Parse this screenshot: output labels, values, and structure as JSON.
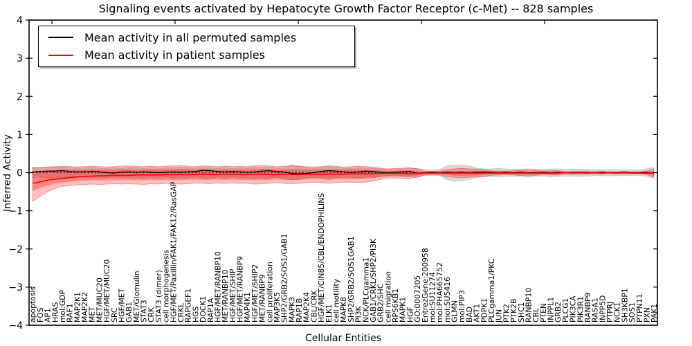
{
  "title": "Signaling events activated by Hepatocyte Growth Factor Receptor (c-Met) -- 828 samples",
  "legend": {
    "items": [
      {
        "label": "Mean activity in all permuted samples",
        "color": "#000000"
      },
      {
        "label": "Mean activity in patient samples",
        "color": "#ff0000"
      }
    ]
  },
  "axes": {
    "x_label": "Cellular Entities",
    "y_label": "Inferred Activity",
    "y_ticks": [
      4,
      3,
      2,
      1,
      0,
      -1,
      -2,
      -3,
      -4
    ]
  },
  "colors": {
    "permuted_line": "#000000",
    "patient_line": "#ff0000",
    "permuted_band": "rgba(125,125,125,0.30)",
    "patient_band_outer": "rgba(255,0,0,0.25)",
    "patient_band_inner": "rgba(255,0,0,0.30)",
    "zero_line": "#000000"
  },
  "chart_data": {
    "type": "line",
    "title": "Signaling events activated by Hepatocyte Growth Factor Receptor (c-Met) -- 828 samples",
    "xlabel": "Cellular Entities",
    "ylabel": "Inferred Activity",
    "ylim": [
      -4,
      4
    ],
    "grid": false,
    "legend_position": "upper left",
    "zero_reference_line": 0,
    "categories": [
      "apoptosis",
      "FOS",
      "AP1",
      "HRAS",
      "mol:GDP",
      "RAF1",
      "MAP2K1",
      "MAP2K2",
      "MET",
      "MET/MUC20",
      "HGF/MET/MUC20",
      "SRC",
      "HGF/MET",
      "GAB1",
      "MET/Glomulin",
      "STAT3",
      "CRK",
      "STAT3 (dimer)",
      "cell morphogenesis",
      "HGF/MET/Paxillin/FAK1/FAK12/RasGAP",
      "CRKL",
      "RAPGEF1",
      "HGS",
      "DOCK1",
      "RAP1A",
      "HGF/MET/RANBP10",
      "MET/RANBP10",
      "HGF/MET/SHIP",
      "HGF/MET/RANBP9",
      "MAP4K1",
      "HGF/MET/SHIP2",
      "MET/RANBP9",
      "cell proliferation",
      "MAP3K5",
      "SHP2/GRB2/SOS1/GAB1",
      "MAPK3",
      "RAP1B",
      "MAP2K4",
      "CBL/CRK",
      "HGF/MET/CIN85/CBL/ENDOPHILINS",
      "ELK1",
      "cell motility",
      "MAPK8",
      "SHP2/GRB2/SOS1GAB1",
      "PI3K",
      "NCK/PLCgamma1",
      "GAB1/CRKL/SHP2/PI3K",
      "GRB2/SHC",
      "cell migration",
      "RPS6KB1",
      "MAPK1",
      "HGF",
      "GO:0007205",
      "EntrezGene:200958",
      "mol:SU11274",
      "mol:PHA665752",
      "mol:SU5416",
      "GLMN",
      "mol:PIP3",
      "BAD",
      "AKT1",
      "PDPK1",
      "PLCgamma1/PKC",
      "JUN",
      "PTK2",
      "PTK2B",
      "SHC1",
      "RANBP10",
      "CBL",
      "PTEN",
      "INPPL1",
      "GRB2",
      "PLCG1",
      "PIK3CA",
      "PIK3R1",
      "RANBP9",
      "RASA1",
      "INPP5D",
      "PTPRJ",
      "NCK1",
      "SH3KBP1",
      "SOS1",
      "PTPN11",
      "PXN",
      "PAK1"
    ],
    "series": [
      {
        "name": "Mean activity in all permuted samples",
        "color": "#000000",
        "values": [
          0.02,
          0.03,
          0.04,
          0.04,
          0.05,
          0.03,
          0.02,
          0.02,
          0.03,
          0.02,
          0.0,
          -0.01,
          0.01,
          0.02,
          0.01,
          0.02,
          0.01,
          0.0,
          0.01,
          0.02,
          0.01,
          0.02,
          0.03,
          0.06,
          0.05,
          0.03,
          0.02,
          0.03,
          0.02,
          0.01,
          0.02,
          0.04,
          0.05,
          0.03,
          0.02,
          -0.02,
          -0.03,
          -0.02,
          0.0,
          0.03,
          0.05,
          0.04,
          0.02,
          0.01,
          0.02,
          0.04,
          0.03,
          0.01,
          0.0,
          0.01,
          0.02,
          0.03,
          -0.02,
          0.0,
          0.01,
          0.0,
          0.01,
          0.0,
          0.01,
          0.0,
          0.01,
          0.02,
          0.01,
          0.0,
          0.01,
          0.0,
          0.01,
          0.0,
          0.0,
          0.01,
          0.0,
          0.01,
          0.0,
          0.0,
          0.01,
          0.0,
          0.0,
          0.01,
          0.0,
          0.0,
          0.01,
          0.0,
          0.0,
          0.01,
          -0.02
        ],
        "band_upper": [
          0.15,
          0.14,
          0.13,
          0.14,
          0.15,
          0.13,
          0.12,
          0.13,
          0.14,
          0.12,
          0.12,
          0.13,
          0.12,
          0.14,
          0.13,
          0.12,
          0.13,
          0.12,
          0.13,
          0.14,
          0.15,
          0.13,
          0.12,
          0.14,
          0.13,
          0.12,
          0.13,
          0.12,
          0.13,
          0.12,
          0.14,
          0.15,
          0.14,
          0.12,
          0.13,
          0.2,
          0.18,
          0.13,
          0.12,
          0.13,
          0.16,
          0.14,
          0.12,
          0.12,
          0.13,
          0.13,
          0.12,
          0.1,
          0.09,
          0.09,
          0.1,
          0.11,
          0.12,
          0.08,
          0.07,
          0.08,
          0.18,
          0.2,
          0.2,
          0.18,
          0.12,
          0.1,
          0.1,
          0.11,
          0.1,
          0.09,
          0.09,
          0.1,
          0.09,
          0.09,
          0.1,
          0.1,
          0.09,
          0.09,
          0.09,
          0.09,
          0.08,
          0.08,
          0.08,
          0.08,
          0.08,
          0.08,
          0.07,
          0.1,
          0.14
        ],
        "band_lower": [
          -0.15,
          -0.14,
          -0.14,
          -0.13,
          -0.14,
          -0.13,
          -0.12,
          -0.13,
          -0.12,
          -0.13,
          -0.13,
          -0.12,
          -0.13,
          -0.12,
          -0.13,
          -0.14,
          -0.12,
          -0.13,
          -0.12,
          -0.13,
          -0.14,
          -0.13,
          -0.12,
          -0.13,
          -0.14,
          -0.12,
          -0.13,
          -0.12,
          -0.13,
          -0.13,
          -0.15,
          -0.14,
          -0.13,
          -0.12,
          -0.14,
          -0.19,
          -0.17,
          -0.13,
          -0.12,
          -0.13,
          -0.15,
          -0.13,
          -0.12,
          -0.12,
          -0.13,
          -0.12,
          -0.12,
          -0.1,
          -0.09,
          -0.09,
          -0.1,
          -0.11,
          -0.12,
          -0.08,
          -0.07,
          -0.08,
          -0.18,
          -0.22,
          -0.22,
          -0.18,
          -0.13,
          -0.11,
          -0.1,
          -0.11,
          -0.1,
          -0.1,
          -0.09,
          -0.1,
          -0.09,
          -0.09,
          -0.11,
          -0.1,
          -0.09,
          -0.09,
          -0.1,
          -0.09,
          -0.08,
          -0.08,
          -0.09,
          -0.08,
          -0.08,
          -0.08,
          -0.07,
          -0.1,
          -0.14
        ]
      },
      {
        "name": "Mean activity in patient samples",
        "color": "#ff0000",
        "values": [
          -0.28,
          -0.24,
          -0.2,
          -0.17,
          -0.15,
          -0.13,
          -0.11,
          -0.1,
          -0.09,
          -0.08,
          -0.08,
          -0.07,
          -0.07,
          -0.07,
          -0.06,
          -0.06,
          -0.06,
          -0.06,
          -0.05,
          -0.05,
          -0.05,
          -0.05,
          -0.05,
          -0.04,
          -0.05,
          -0.05,
          -0.04,
          -0.04,
          -0.05,
          -0.05,
          -0.04,
          -0.04,
          -0.05,
          -0.05,
          -0.04,
          -0.05,
          -0.05,
          -0.04,
          -0.04,
          -0.05,
          -0.04,
          -0.04,
          -0.04,
          -0.03,
          -0.03,
          -0.03,
          -0.03,
          -0.02,
          -0.02,
          -0.02,
          -0.02,
          -0.03,
          -0.02,
          -0.01,
          -0.01,
          -0.01,
          -0.01,
          -0.01,
          -0.01,
          -0.01,
          -0.01,
          -0.01,
          -0.01,
          -0.01,
          -0.01,
          -0.01,
          -0.01,
          -0.01,
          -0.01,
          -0.01,
          -0.01,
          -0.01,
          0.0,
          -0.01,
          0.0,
          -0.01,
          0.0,
          -0.01,
          0.0,
          -0.01,
          0.0,
          -0.01,
          -0.01,
          -0.01,
          -0.01
        ],
        "band_upper": [
          0.12,
          0.13,
          0.15,
          0.16,
          0.17,
          0.16,
          0.15,
          0.16,
          0.17,
          0.16,
          0.15,
          0.16,
          0.17,
          0.18,
          0.17,
          0.16,
          0.17,
          0.16,
          0.17,
          0.18,
          0.19,
          0.17,
          0.16,
          0.18,
          0.17,
          0.16,
          0.17,
          0.16,
          0.17,
          0.16,
          0.18,
          0.19,
          0.18,
          0.16,
          0.17,
          0.18,
          0.17,
          0.16,
          0.15,
          0.16,
          0.18,
          0.17,
          0.15,
          0.16,
          0.17,
          0.16,
          0.14,
          0.12,
          0.1,
          0.11,
          0.12,
          0.13,
          0.1,
          0.04,
          0.03,
          0.04,
          0.08,
          0.1,
          0.11,
          0.1,
          0.09,
          0.08,
          0.05,
          0.04,
          0.04,
          0.05,
          0.06,
          0.07,
          0.06,
          0.04,
          0.05,
          0.05,
          0.03,
          0.03,
          0.03,
          0.03,
          0.02,
          0.03,
          0.02,
          0.02,
          0.03,
          0.02,
          0.02,
          0.04,
          0.1
        ],
        "band_lower": [
          -0.75,
          -0.62,
          -0.5,
          -0.42,
          -0.36,
          -0.34,
          -0.32,
          -0.31,
          -0.3,
          -0.31,
          -0.3,
          -0.29,
          -0.3,
          -0.29,
          -0.3,
          -0.31,
          -0.29,
          -0.3,
          -0.28,
          -0.29,
          -0.3,
          -0.29,
          -0.27,
          -0.28,
          -0.29,
          -0.27,
          -0.28,
          -0.27,
          -0.28,
          -0.28,
          -0.3,
          -0.29,
          -0.28,
          -0.26,
          -0.28,
          -0.29,
          -0.28,
          -0.26,
          -0.25,
          -0.26,
          -0.28,
          -0.26,
          -0.25,
          -0.25,
          -0.26,
          -0.25,
          -0.22,
          -0.18,
          -0.14,
          -0.14,
          -0.15,
          -0.16,
          -0.12,
          -0.06,
          -0.05,
          -0.06,
          -0.1,
          -0.12,
          -0.13,
          -0.12,
          -0.11,
          -0.1,
          -0.07,
          -0.06,
          -0.05,
          -0.06,
          -0.08,
          -0.09,
          -0.07,
          -0.05,
          -0.06,
          -0.06,
          -0.04,
          -0.04,
          -0.04,
          -0.04,
          -0.03,
          -0.04,
          -0.03,
          -0.03,
          -0.04,
          -0.03,
          -0.03,
          -0.05,
          -0.12
        ],
        "inner_band_upper": [
          0.02,
          0.04,
          0.06,
          0.07,
          0.08,
          0.08,
          0.08,
          0.08,
          0.09,
          0.08,
          0.08,
          0.08,
          0.09,
          0.09,
          0.08,
          0.08,
          0.09,
          0.08,
          0.09,
          0.09,
          0.1,
          0.09,
          0.08,
          0.09,
          0.09,
          0.08,
          0.09,
          0.08,
          0.09,
          0.08,
          0.09,
          0.1,
          0.09,
          0.08,
          0.09,
          0.09,
          0.09,
          0.08,
          0.08,
          0.08,
          0.09,
          0.09,
          0.08,
          0.08,
          0.09,
          0.08,
          0.07,
          0.06,
          0.05,
          0.05,
          0.06,
          0.06,
          0.05,
          0.02,
          0.01,
          0.02,
          0.04,
          0.05,
          0.05,
          0.05,
          0.04,
          0.04,
          0.02,
          0.02,
          0.02,
          0.02,
          0.03,
          0.03,
          0.03,
          0.02,
          0.02,
          0.02,
          0.01,
          0.01,
          0.01,
          0.01,
          0.01,
          0.01,
          0.01,
          0.01,
          0.01,
          0.01,
          0.01,
          0.02,
          0.05
        ],
        "inner_band_lower": [
          -0.48,
          -0.4,
          -0.34,
          -0.29,
          -0.26,
          -0.24,
          -0.22,
          -0.21,
          -0.2,
          -0.2,
          -0.2,
          -0.19,
          -0.2,
          -0.19,
          -0.2,
          -0.2,
          -0.19,
          -0.2,
          -0.19,
          -0.19,
          -0.2,
          -0.19,
          -0.18,
          -0.19,
          -0.19,
          -0.18,
          -0.19,
          -0.18,
          -0.19,
          -0.19,
          -0.2,
          -0.19,
          -0.19,
          -0.17,
          -0.19,
          -0.19,
          -0.19,
          -0.17,
          -0.17,
          -0.17,
          -0.19,
          -0.17,
          -0.17,
          -0.17,
          -0.17,
          -0.17,
          -0.15,
          -0.12,
          -0.1,
          -0.1,
          -0.1,
          -0.11,
          -0.08,
          -0.04,
          -0.03,
          -0.04,
          -0.06,
          -0.08,
          -0.08,
          -0.08,
          -0.07,
          -0.06,
          -0.04,
          -0.04,
          -0.03,
          -0.04,
          -0.05,
          -0.06,
          -0.05,
          -0.03,
          -0.04,
          -0.04,
          -0.02,
          -0.02,
          -0.03,
          -0.02,
          -0.02,
          -0.02,
          -0.02,
          -0.02,
          -0.02,
          -0.02,
          -0.02,
          -0.03,
          -0.07
        ]
      }
    ]
  }
}
